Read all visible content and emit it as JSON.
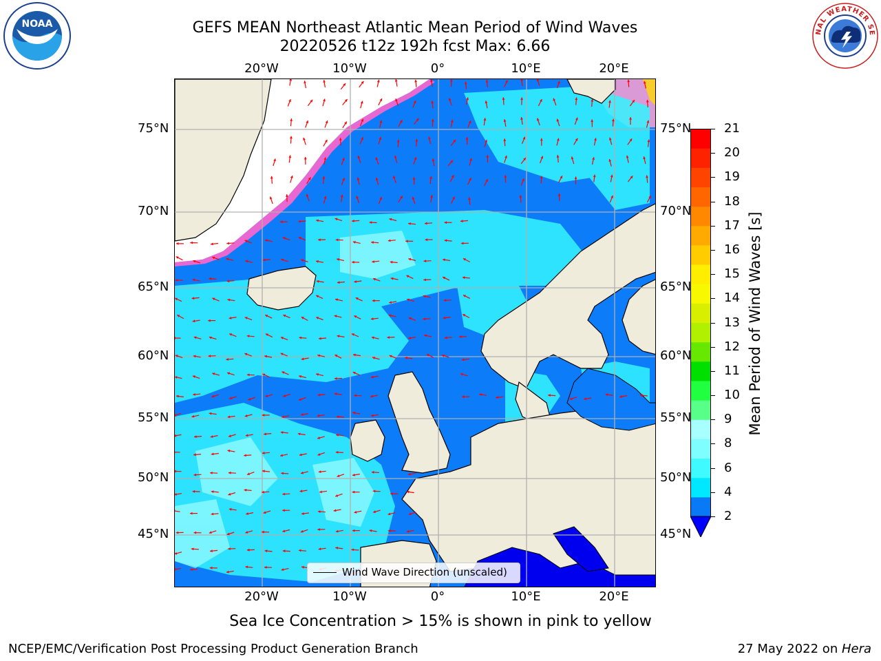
{
  "title_line1": "GEFS MEAN Northeast Atlantic Mean Period of Wind Waves",
  "title_line2": "20220526 t12z 192h fcst   Max: 6.66",
  "map": {
    "lon_labels": [
      "20°W",
      "10°W",
      "0°",
      "10°E",
      "20°E"
    ],
    "lon_values": [
      -20,
      -10,
      0,
      10,
      20
    ],
    "lat_labels": [
      "75°N",
      "70°N",
      "65°N",
      "60°N",
      "55°N",
      "50°N",
      "45°N"
    ],
    "lat_values": [
      75,
      70,
      65,
      60,
      55,
      50,
      45
    ],
    "extent": {
      "lon_min": -30,
      "lon_max": 25,
      "lat_min": 41,
      "lat_max": 78
    },
    "colors": {
      "land": "#efecdc",
      "wave_2_4": "#0c7cf8",
      "wave_4_6": "#00ffff",
      "wave_6_8": "#44ffff",
      "ice_edge": "#ff66cc",
      "arrow": "#ff0000",
      "coastline": "#000000",
      "grid": "#b0b0b0"
    }
  },
  "legend": {
    "label": "Wind Wave Direction (unscaled)"
  },
  "colorbar": {
    "title": "Mean Period of Wind Waves [s]",
    "ticks": [
      "21",
      "20",
      "19",
      "18",
      "17",
      "16",
      "15",
      "14",
      "13",
      "12",
      "11",
      "10",
      "9",
      "8",
      "6",
      "4",
      "2"
    ],
    "colors": [
      "#0a79f5",
      "#00e8ff",
      "#3ffbff",
      "#7ffeff",
      "#a8ffff",
      "#58ff88",
      "#20ff40",
      "#00e000",
      "#66e800",
      "#b0f000",
      "#d8f000",
      "#f8f800",
      "#ffee00",
      "#ffcc00",
      "#ffaa00",
      "#ff8800",
      "#ff6600",
      "#ff4400",
      "#ff2200",
      "#ff0000"
    ],
    "extend_color": "#0000ff"
  },
  "caption": "Sea Ice Concentration > 15% is shown in pink to yellow",
  "footer_left": "NCEP/EMC/Verification Post Processing Product Generation Branch",
  "footer_right_prefix": "27 May 2022 on ",
  "footer_right_host": "Hera",
  "logos": {
    "noaa_text": "NOAA",
    "nws_text": "NATIONAL WEATHER SERVICE"
  }
}
